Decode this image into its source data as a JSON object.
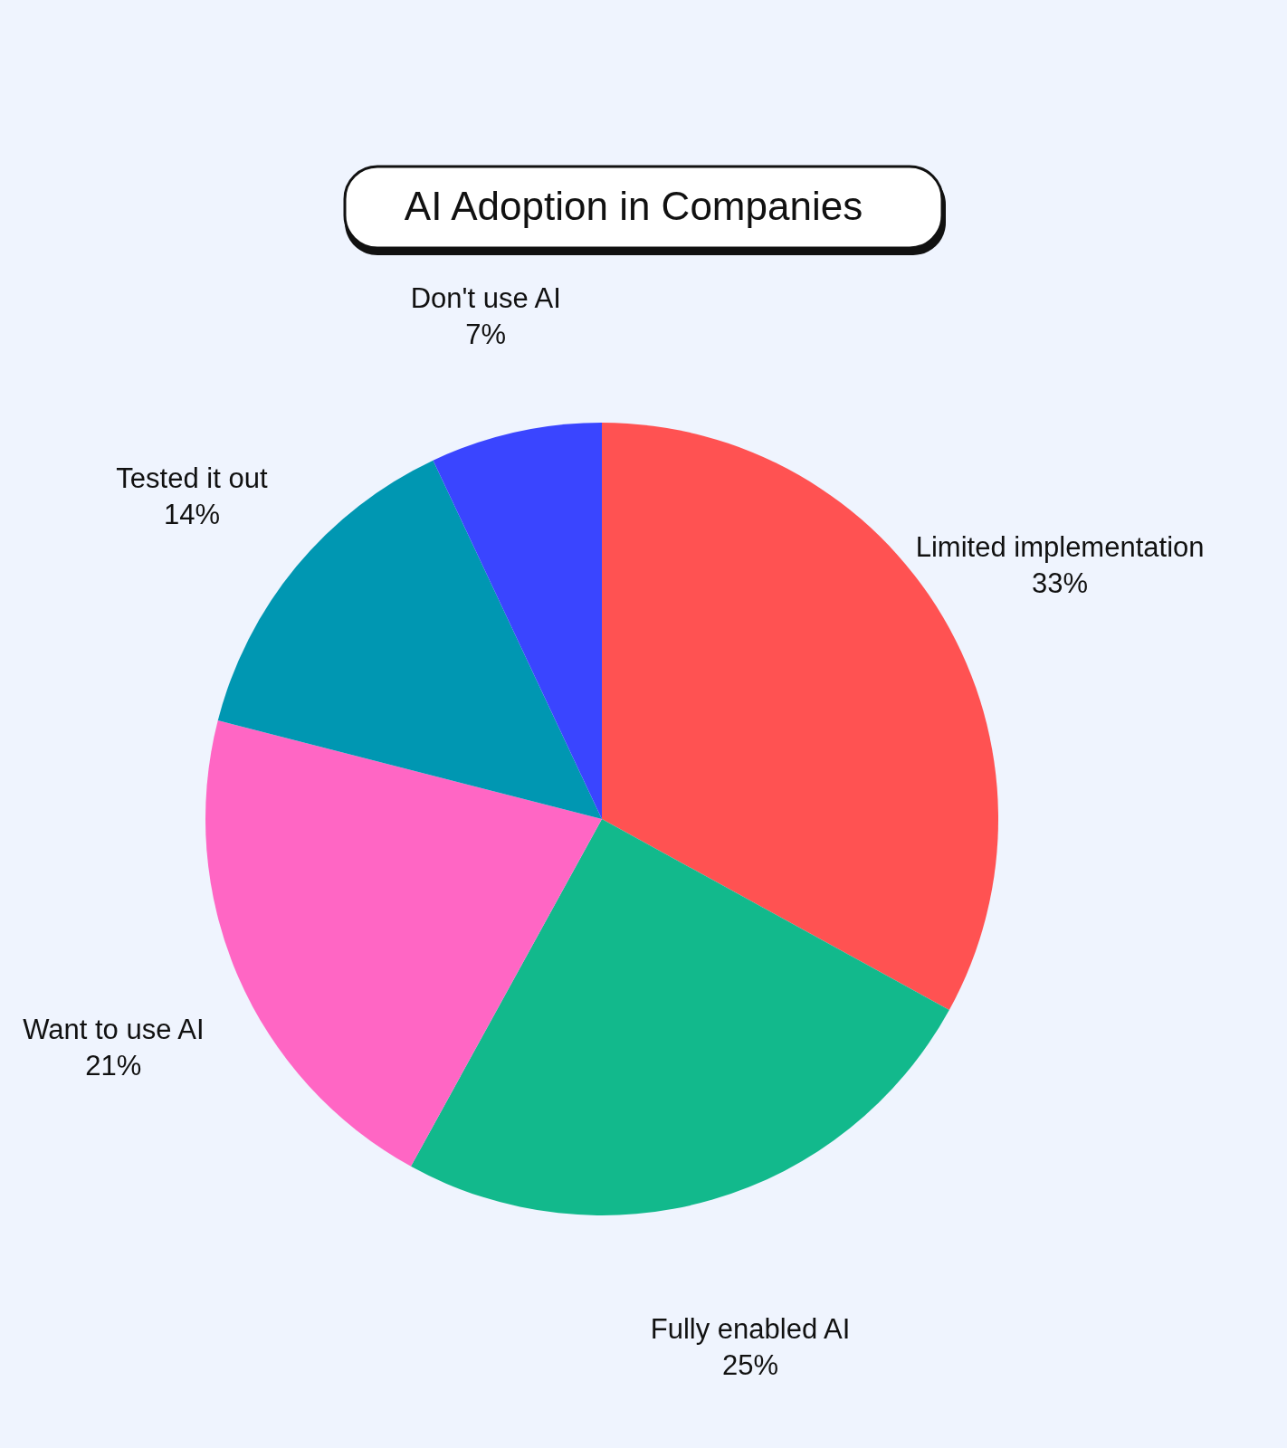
{
  "chart_data": {
    "type": "pie",
    "title": "AI Adoption in Companies",
    "categories": [
      "Limited implementation",
      "Fully enabled AI",
      "Want to use AI",
      "Tested it out",
      "Don't use AI"
    ],
    "values": [
      33,
      25,
      21,
      14,
      7
    ],
    "value_labels": [
      "33%",
      "25%",
      "21%",
      "14%",
      "7%"
    ],
    "colors": [
      "#ff5252",
      "#12b98c",
      "#ff66c4",
      "#0097b2",
      "#3a45ff"
    ]
  }
}
